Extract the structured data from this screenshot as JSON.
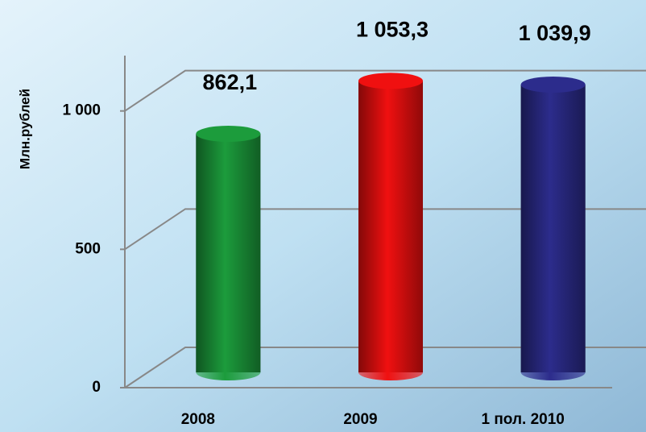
{
  "chart_data": {
    "type": "bar3d",
    "y_label": "Млн.рублей",
    "categories": [
      "2008",
      "2009",
      "1 пол. 2010"
    ],
    "values": [
      862.1,
      1053.3,
      1039.9
    ],
    "value_labels": [
      "862,1",
      "1 053,3",
      "1 039,9"
    ],
    "colors": [
      "#1c9c3c",
      "#f01010",
      "#2c2c8c"
    ],
    "ylim": [
      0,
      1200
    ],
    "yticks": [
      0,
      500,
      {
        "value": 1000,
        "label": "1 000"
      }
    ],
    "grid": true
  }
}
